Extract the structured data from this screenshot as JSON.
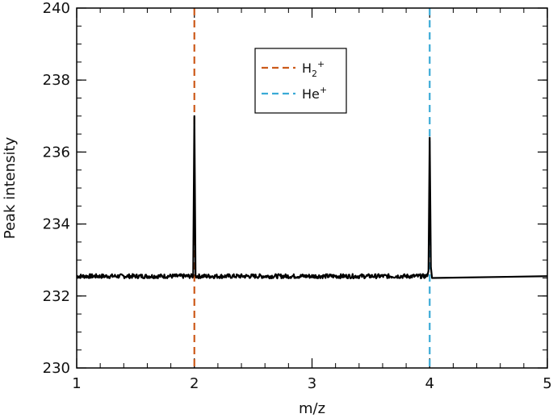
{
  "chart_data": {
    "type": "line",
    "xlabel": "m/z",
    "ylabel": "Peak intensity",
    "xlim": [
      1,
      5
    ],
    "ylim": [
      230,
      240
    ],
    "xticks": [
      "1",
      "2",
      "3",
      "4",
      "5"
    ],
    "yticks": [
      "230",
      "232",
      "234",
      "236",
      "238",
      "240"
    ],
    "x_minor_step": 0.2,
    "y_minor_step": 0.5,
    "grid": false,
    "legend_position": "top-center",
    "baseline": 232.55,
    "series": [
      {
        "color": "#000000",
        "style": "solid",
        "x": [
          1.0,
          1.99,
          2.0,
          2.01,
          3.98,
          3.99,
          4.0,
          4.01,
          4.02,
          5.0
        ],
        "y": [
          232.55,
          232.55,
          237.0,
          232.55,
          232.55,
          232.7,
          236.4,
          232.8,
          232.5,
          232.55
        ]
      }
    ],
    "reference_lines": [
      {
        "x": 2,
        "color": "#cc5a1a",
        "style": "dashed",
        "legend": {
          "base": "H",
          "sub": "2",
          "sup": "+"
        }
      },
      {
        "x": 4,
        "color": "#3aaad6",
        "style": "dashed",
        "legend": {
          "base": "He",
          "sub": "",
          "sup": "+"
        }
      }
    ]
  }
}
